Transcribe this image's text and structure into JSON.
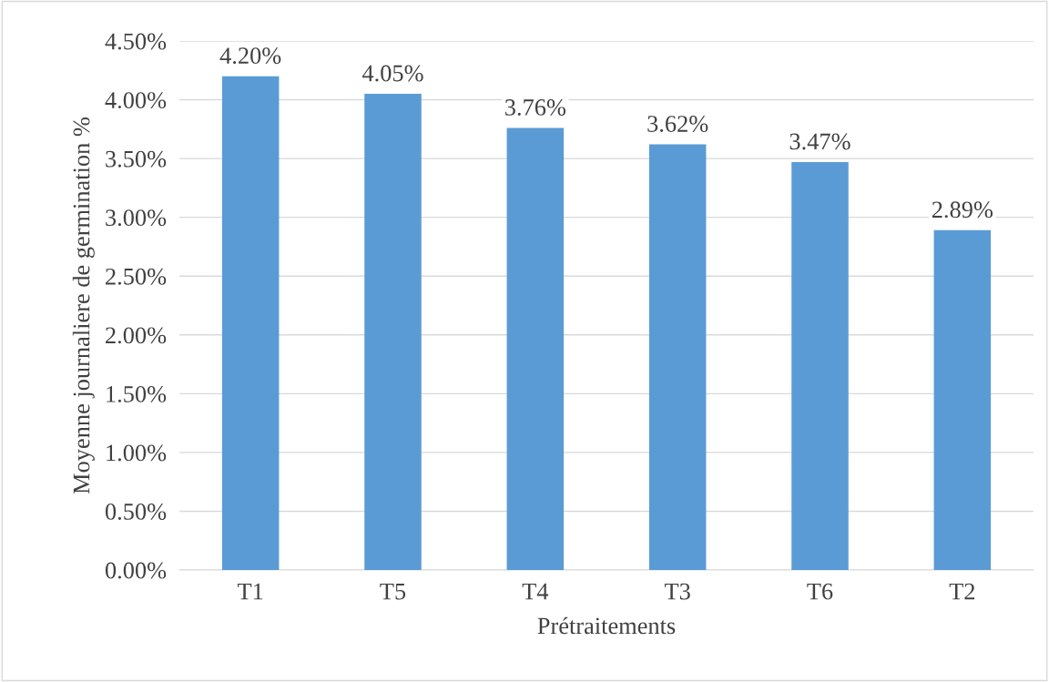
{
  "chart_data": {
    "type": "bar",
    "xlabel": "Prétraitements",
    "ylabel": "Moyenne journaliere de germination %",
    "categories": [
      "T1",
      "T5",
      "T4",
      "T3",
      "T6",
      "T2"
    ],
    "values": [
      4.2,
      4.05,
      3.76,
      3.62,
      3.47,
      2.89
    ],
    "value_labels": [
      "4.20%",
      "4.05%",
      "3.76%",
      "3.62%",
      "3.47%",
      "2.89%"
    ],
    "color": "#5b9bd5",
    "ylim": [
      0,
      4.5
    ],
    "yticks": [
      {
        "value": 0,
        "label": "0.00%"
      },
      {
        "value": 0.5,
        "label": "0.50%"
      },
      {
        "value": 1,
        "label": "1.00%"
      },
      {
        "value": 1.5,
        "label": "1.50%"
      },
      {
        "value": 2,
        "label": "2.00%"
      },
      {
        "value": 2.5,
        "label": "2.50%"
      },
      {
        "value": 3,
        "label": "3.00%"
      },
      {
        "value": 3.5,
        "label": "3.50%"
      },
      {
        "value": 4,
        "label": "4.00%"
      },
      {
        "value": 4.5,
        "label": "4.50%"
      }
    ],
    "grid": "y"
  }
}
